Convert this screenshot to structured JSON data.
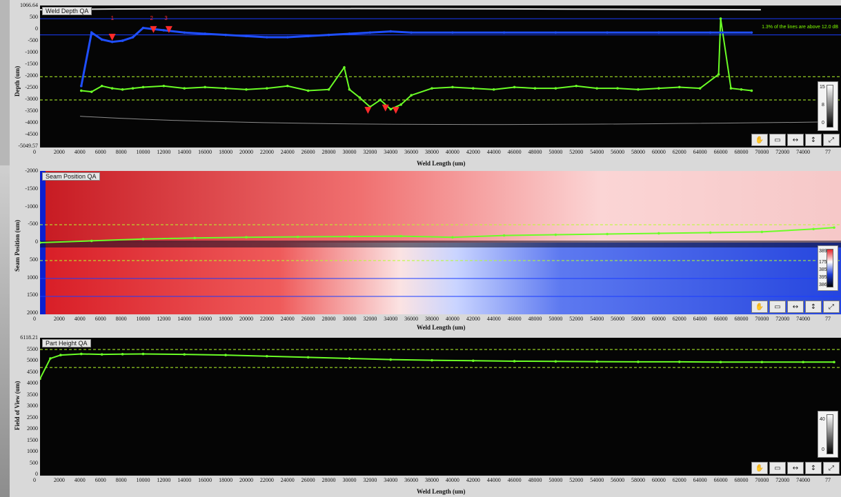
{
  "panels": [
    {
      "title": "Weld Depth QA",
      "ylabel": "Depth (um)",
      "xlabel": "Weld Length (um)",
      "yticks": [
        "1066.64",
        "500",
        "0",
        "-500",
        "-1000",
        "-1500",
        "-2000",
        "-2500",
        "-3000",
        "-3500",
        "-4000",
        "-4500",
        "-5049.57"
      ],
      "note": "1.3% of the lines are above 12.0 dB",
      "legend_labels": [
        "15",
        "8",
        "0"
      ],
      "peak_labels": [
        "1",
        "2",
        "3"
      ]
    },
    {
      "title": "Seam Position QA",
      "ylabel": "Seam Position (um)",
      "xlabel": "Weld Length (um)",
      "yticks": [
        "-2000",
        "-1500",
        "-1000",
        "-500",
        "0",
        "500",
        "1000",
        "1500",
        "2000"
      ],
      "legend_labels": [
        "389",
        "175",
        "385",
        "395",
        "386"
      ]
    },
    {
      "title": "Part Height QA",
      "ylabel": "Field of View (um)",
      "xlabel": "Weld Length (um)",
      "yticks": [
        "6118.21",
        "5500",
        "5000",
        "4500",
        "4000",
        "3500",
        "3000",
        "2500",
        "2000",
        "1500",
        "1000",
        "500",
        "0"
      ],
      "legend_labels": [
        "40",
        "0"
      ]
    }
  ],
  "xticks": [
    "0",
    "2000",
    "4000",
    "6000",
    "8000",
    "10000",
    "12000",
    "14000",
    "16000",
    "18000",
    "20000",
    "22000",
    "24000",
    "26000",
    "28000",
    "30000",
    "32000",
    "34000",
    "36000",
    "38000",
    "40000",
    "42000",
    "44000",
    "46000",
    "48000",
    "50000",
    "52000",
    "54000",
    "56000",
    "58000",
    "60000",
    "62000",
    "64000",
    "66000",
    "68000",
    "70000",
    "72000",
    "74000",
    "77"
  ],
  "xticks_depth": [
    "0",
    "2000",
    "4000",
    "6000",
    "8000",
    "10000",
    "12000",
    "14000",
    "16000",
    "18000",
    "20000",
    "22000",
    "24000",
    "26000",
    "28000",
    "30000",
    "32000",
    "34000",
    "36000",
    "38000",
    "40000",
    "42000",
    "44000",
    "46000",
    "48000",
    "50000",
    "52000",
    "54000",
    "56000",
    "58000",
    "60000",
    "62000",
    "64000",
    "66000",
    "68000",
    "70000",
    "72000",
    "74000",
    "77"
  ],
  "toolbar_icons": [
    "pan-hand-icon",
    "zoom-box-icon",
    "zoom-x-icon",
    "zoom-y-icon",
    "zoom-fit-icon"
  ],
  "colors": {
    "trace_green": "#6bff26",
    "trace_blue": "#1f4fff",
    "marker_red": "#ff2b2b",
    "threshold_green": "#b7ff2a",
    "threshold_blue": "#1a3cff",
    "heat_red": "#e3242b",
    "heat_blue": "#1c3cd8"
  },
  "chart_data": [
    {
      "type": "line",
      "title": "Weld Depth QA",
      "xlabel": "Weld Length (um)",
      "ylabel": "Depth (um)",
      "xlim": [
        0,
        77000
      ],
      "ylim": [
        -5049.57,
        1066.64
      ],
      "series": [
        {
          "x": [
            4000,
            5000,
            6000,
            7000,
            8000,
            9000,
            10000,
            12000,
            14000,
            16000,
            18000,
            20000,
            22000,
            24000,
            26000,
            28000,
            29500,
            30000,
            31000,
            32000,
            33000,
            34000,
            35000,
            36000,
            38000,
            40000,
            42000,
            44000,
            46000,
            48000,
            50000,
            52000,
            54000,
            56000,
            58000,
            60000,
            62000,
            64000,
            65800,
            66000,
            67000,
            68000,
            69000
          ],
          "values": [
            -2600,
            -2650,
            -2400,
            -2500,
            -2550,
            -2500,
            -2450,
            -2400,
            -2500,
            -2450,
            -2500,
            -2550,
            -2500,
            -2400,
            -2600,
            -2550,
            -1600,
            -2550,
            -2900,
            -3300,
            -3000,
            -3400,
            -3200,
            -2800,
            -2500,
            -2450,
            -2500,
            -2550,
            -2450,
            -2500,
            -2500,
            -2400,
            -2500,
            -2500,
            -2550,
            -2500,
            -2450,
            -2500,
            -1900,
            500,
            -2500,
            -2550,
            -2600
          ]
        },
        {
          "x": [
            4000,
            5000,
            6000,
            7000,
            8000,
            9000,
            10000,
            12000,
            14000,
            16000,
            18000,
            20000,
            22000,
            24000,
            26000,
            28000,
            30000,
            32000,
            34000,
            36000,
            40000,
            45000,
            50000,
            55000,
            60000,
            65000,
            69000
          ],
          "values": [
            -2400,
            -100,
            -400,
            -500,
            -450,
            -300,
            100,
            0,
            -100,
            -150,
            -200,
            -250,
            -300,
            -300,
            -250,
            -200,
            -150,
            -100,
            -50,
            -100,
            -100,
            -100,
            -100,
            -100,
            -100,
            -100,
            -100
          ]
        }
      ],
      "thresholds": [
        500,
        -200,
        -2000,
        -3000
      ]
    },
    {
      "type": "heatmap",
      "title": "Seam Position QA",
      "xlabel": "Weld Length (um)",
      "ylabel": "Seam Position (um)",
      "xlim": [
        0,
        77000
      ],
      "ylim": [
        -2000,
        2000
      ],
      "trace": {
        "x": [
          0,
          5000,
          10000,
          15000,
          20000,
          25000,
          30000,
          35000,
          40000,
          45000,
          50000,
          55000,
          60000,
          65000,
          70000,
          75000,
          77000
        ],
        "values": [
          0,
          50,
          100,
          130,
          150,
          160,
          170,
          180,
          150,
          200,
          220,
          240,
          260,
          280,
          300,
          380,
          420
        ]
      },
      "thresholds": [
        -1500,
        -1000,
        -500,
        500
      ]
    },
    {
      "type": "line",
      "title": "Part Height QA",
      "xlabel": "Weld Length (um)",
      "ylabel": "Field of View (um)",
      "xlim": [
        0,
        77000
      ],
      "ylim": [
        0,
        6118.21
      ],
      "series": [
        {
          "x": [
            0,
            1000,
            2000,
            4000,
            6000,
            8000,
            10000,
            14000,
            18000,
            22000,
            26000,
            30000,
            34000,
            38000,
            42000,
            46000,
            50000,
            54000,
            58000,
            62000,
            66000,
            70000,
            74000,
            77000
          ],
          "values": [
            4300,
            5200,
            5350,
            5400,
            5380,
            5390,
            5400,
            5380,
            5350,
            5300,
            5250,
            5200,
            5150,
            5120,
            5100,
            5080,
            5070,
            5060,
            5050,
            5050,
            5040,
            5040,
            5040,
            5040
          ]
        }
      ],
      "thresholds": [
        5600,
        4800
      ]
    }
  ]
}
